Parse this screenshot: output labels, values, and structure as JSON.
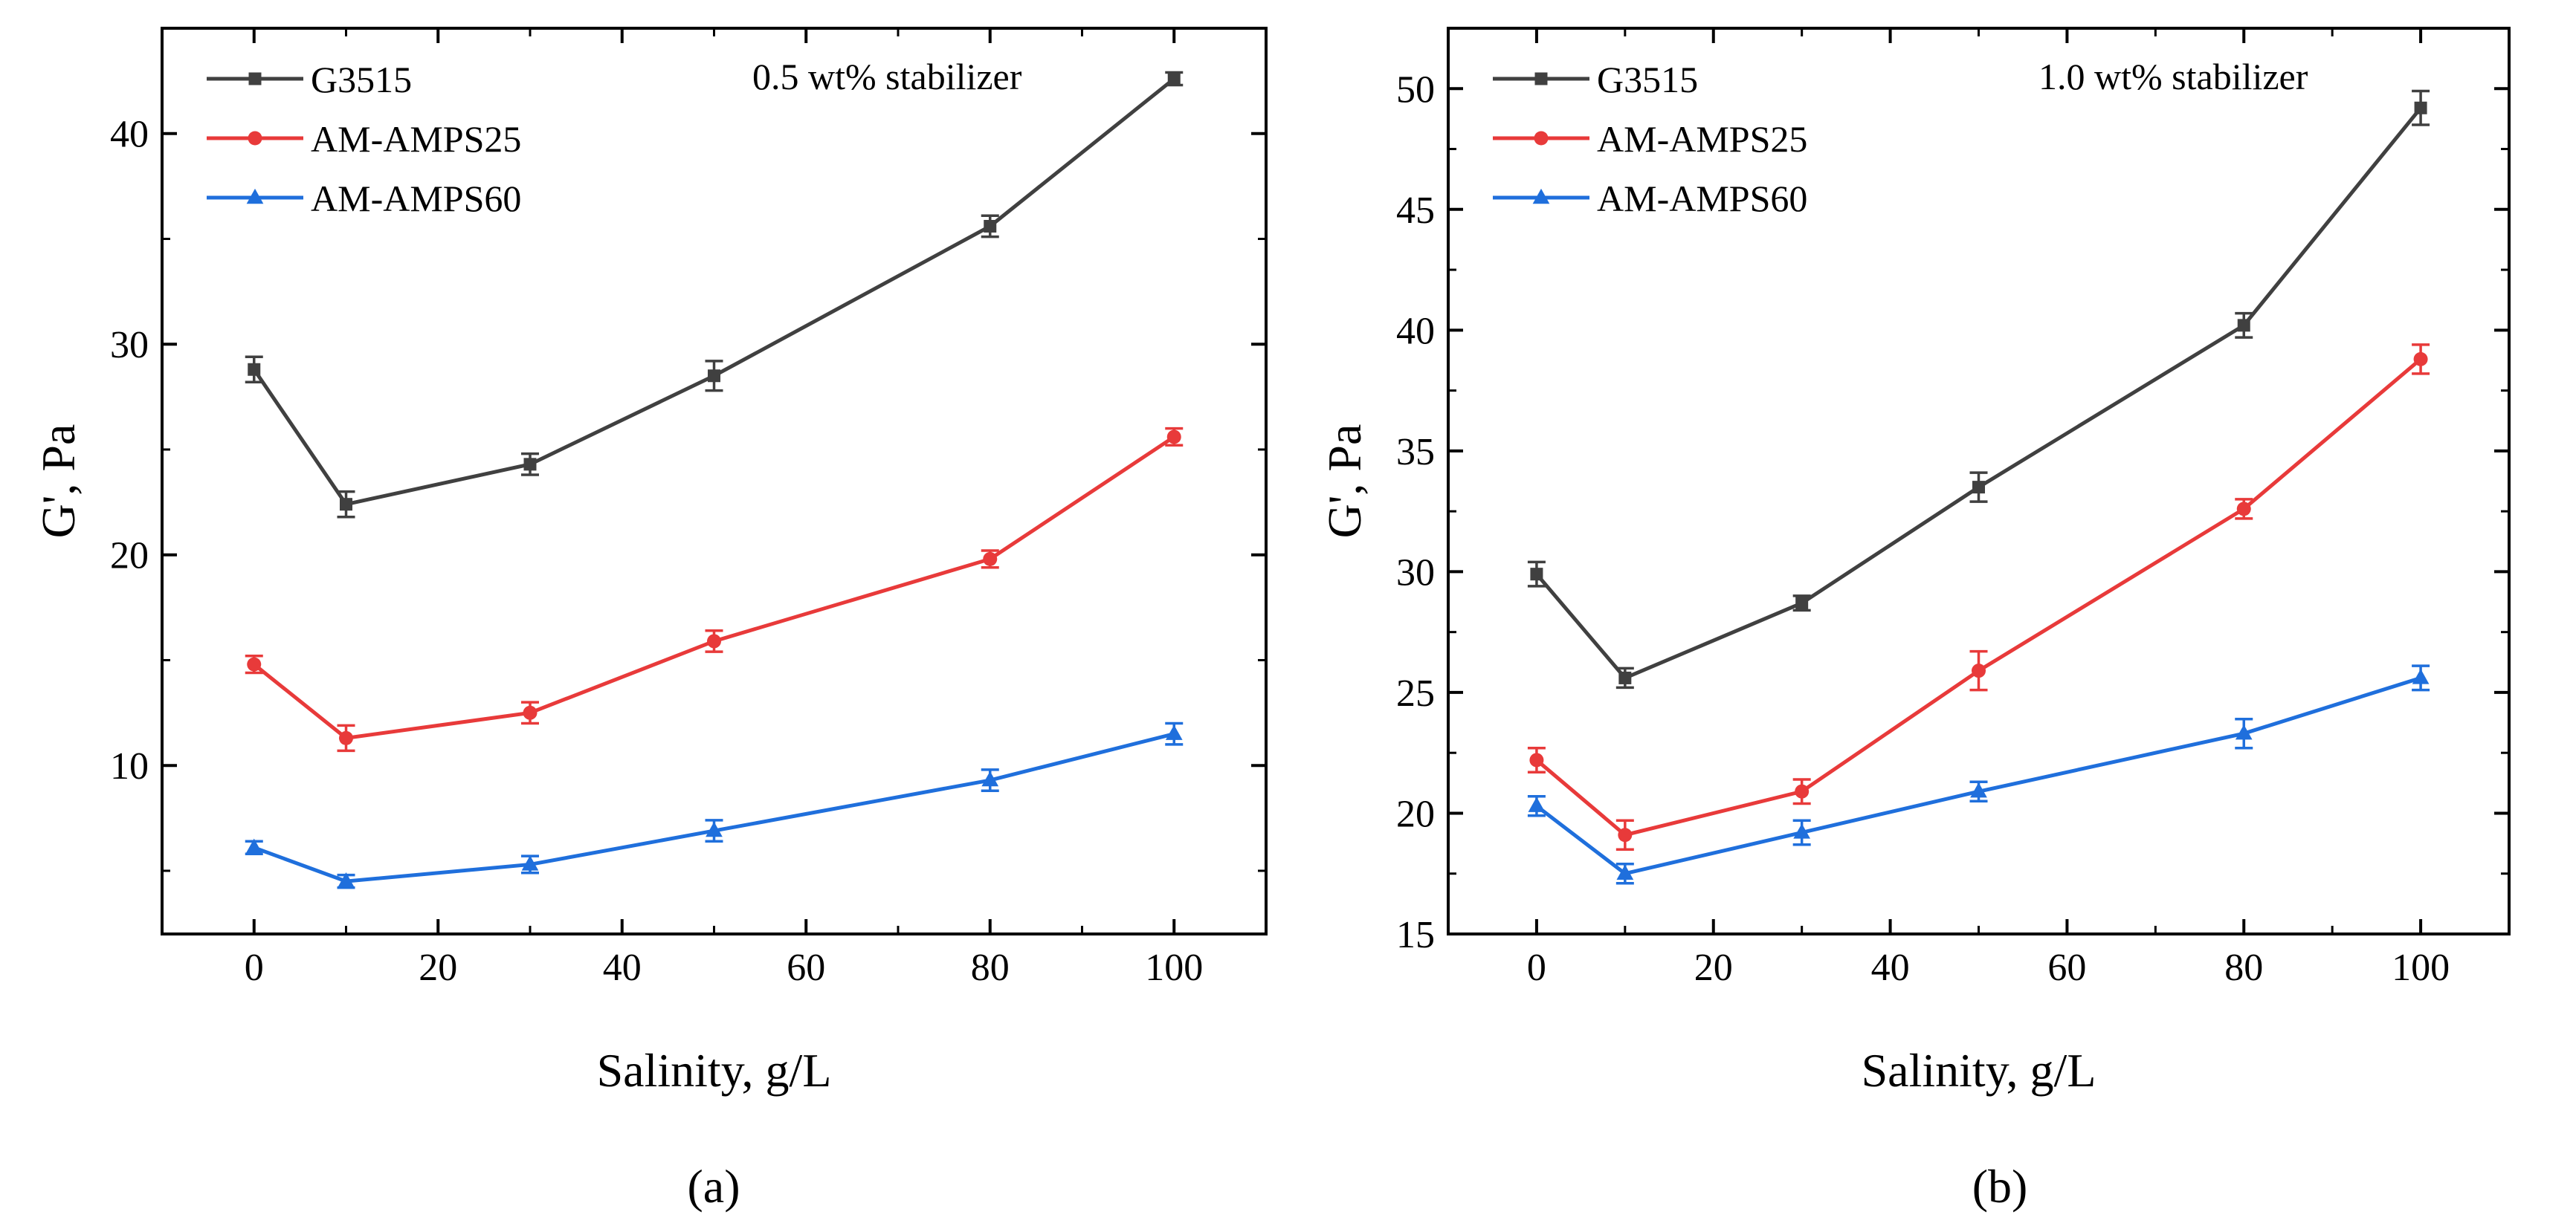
{
  "chart_data": [
    {
      "type": "line",
      "panel_label": "(a)",
      "annotation": "0.5 wt% stabilizer",
      "xlabel": "Salinity, g/L",
      "ylabel": "G', Pa",
      "xlim": [
        -10,
        110
      ],
      "ylim": [
        2,
        45
      ],
      "xticks": [
        0,
        20,
        40,
        60,
        80,
        100
      ],
      "yticks": [
        10,
        20,
        30,
        40
      ],
      "xtick_labels": [
        "0",
        "20",
        "40",
        "60",
        "80",
        "100"
      ],
      "ytick_labels": [
        "10",
        "20",
        "30",
        "40"
      ],
      "legend_position": "top-left",
      "x": [
        0,
        10,
        30,
        50,
        80,
        100
      ],
      "series": [
        {
          "name": "G3515",
          "color": "#404040",
          "marker": "square",
          "values": [
            28.8,
            22.4,
            24.3,
            28.5,
            35.6,
            42.6
          ],
          "errors": [
            0.6,
            0.6,
            0.5,
            0.7,
            0.5,
            0.3
          ]
        },
        {
          "name": "AM-AMPS25",
          "color": "#e83a3a",
          "marker": "circle",
          "values": [
            14.8,
            11.3,
            12.5,
            15.9,
            19.8,
            25.6
          ],
          "errors": [
            0.4,
            0.6,
            0.5,
            0.5,
            0.4,
            0.4
          ]
        },
        {
          "name": "AM-AMPS60",
          "color": "#1f6fdc",
          "marker": "triangle",
          "values": [
            6.1,
            4.5,
            5.3,
            6.9,
            9.3,
            11.5
          ],
          "errors": [
            0.3,
            0.3,
            0.4,
            0.5,
            0.5,
            0.5
          ]
        }
      ]
    },
    {
      "type": "line",
      "panel_label": "(b)",
      "annotation": "1.0 wt% stabilizer",
      "xlabel": "Salinity, g/L",
      "ylabel": "G', Pa",
      "xlim": [
        -10,
        110
      ],
      "ylim": [
        15,
        52.5
      ],
      "xticks": [
        0,
        20,
        40,
        60,
        80,
        100
      ],
      "yticks": [
        15,
        20,
        25,
        30,
        35,
        40,
        45,
        50
      ],
      "xtick_labels": [
        "0",
        "20",
        "40",
        "60",
        "80",
        "100"
      ],
      "ytick_labels": [
        "15",
        "20",
        "25",
        "30",
        "35",
        "40",
        "45",
        "50"
      ],
      "legend_position": "top-left",
      "x": [
        0,
        10,
        30,
        50,
        80,
        100
      ],
      "series": [
        {
          "name": "G3515",
          "color": "#404040",
          "marker": "square",
          "values": [
            29.9,
            25.6,
            28.7,
            33.5,
            40.2,
            49.2
          ],
          "errors": [
            0.5,
            0.4,
            0.3,
            0.6,
            0.5,
            0.7
          ]
        },
        {
          "name": "AM-AMPS25",
          "color": "#e83a3a",
          "marker": "circle",
          "values": [
            22.2,
            19.1,
            20.9,
            25.9,
            32.6,
            38.8
          ],
          "errors": [
            0.5,
            0.6,
            0.5,
            0.8,
            0.4,
            0.6
          ]
        },
        {
          "name": "AM-AMPS60",
          "color": "#1f6fdc",
          "marker": "triangle",
          "values": [
            20.3,
            17.5,
            19.2,
            20.9,
            23.3,
            25.6
          ],
          "errors": [
            0.4,
            0.4,
            0.5,
            0.4,
            0.6,
            0.5
          ]
        }
      ]
    }
  ]
}
